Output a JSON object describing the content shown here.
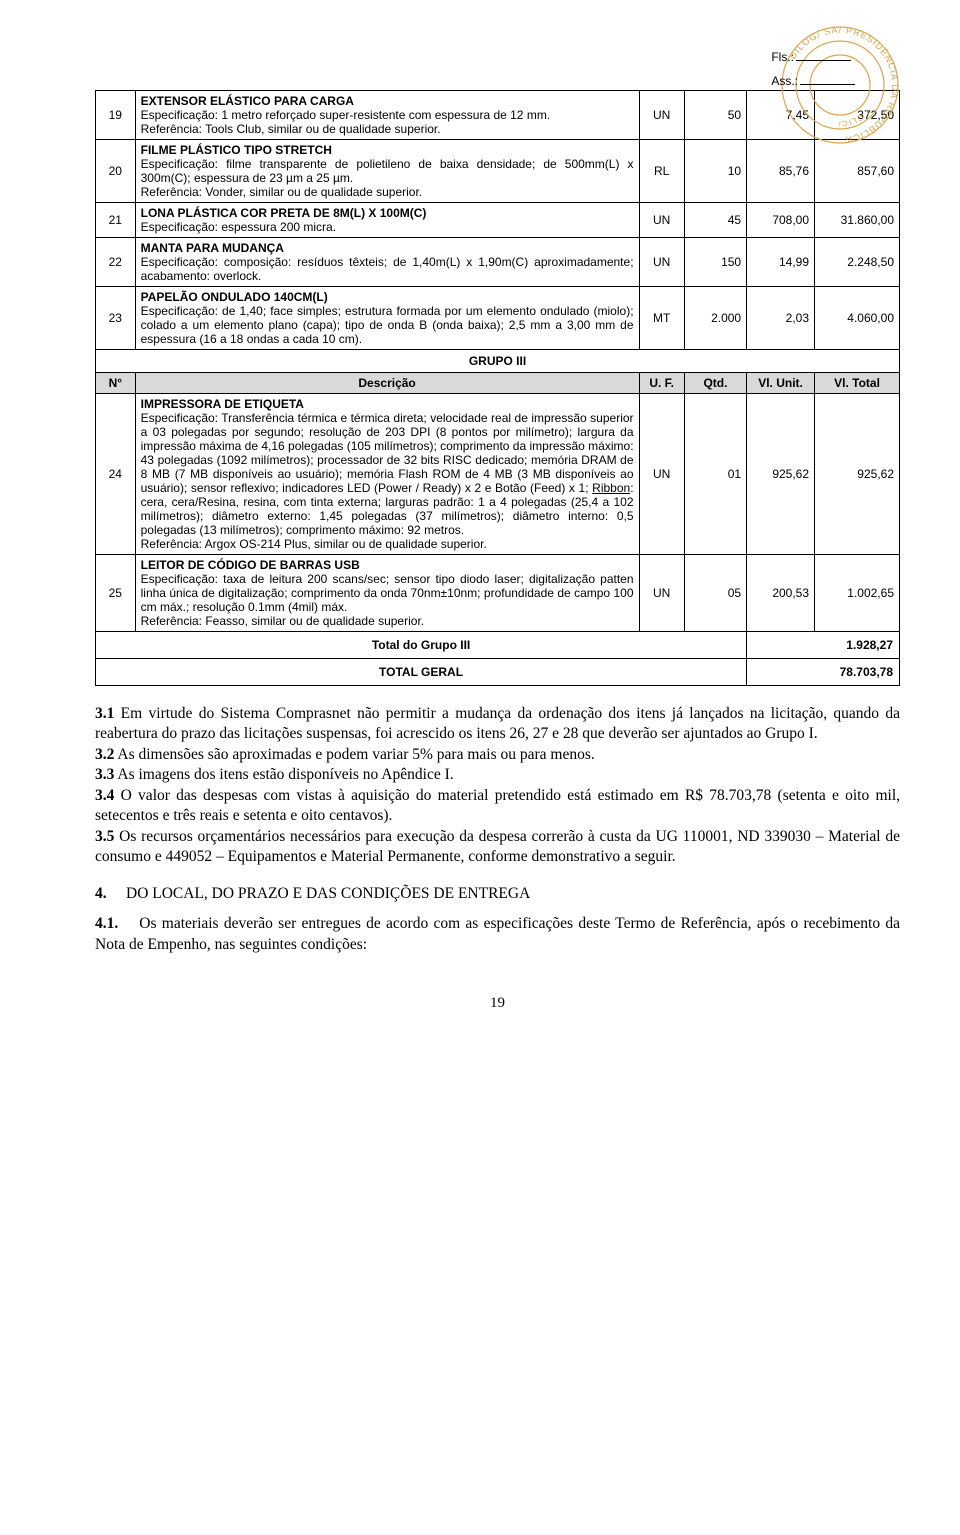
{
  "header": {
    "fls_label": "Fls.:",
    "ass_label": "Ass.:",
    "stamp_text_outer": "DILOG/ SA/ PRESIDÊNCIA DA REPÚBLICA",
    "stamp_text_inner": "/ CLIC/"
  },
  "table": {
    "rows_top": [
      {
        "n": "19",
        "title": "EXTENSOR ELÁSTICO PARA CARGA",
        "body": "Especificação: 1 metro reforçado super-resistente com espessura de 12 mm.\nReferência: Tools Club, similar ou de qualidade superior.",
        "uf": "UN",
        "qtd": "50",
        "unit": "7,45",
        "total": "372,50"
      },
      {
        "n": "20",
        "title": "FILME PLÁSTICO TIPO STRETCH",
        "body": "Especificação: filme transparente de polietileno de baixa densidade; de 500mm(L) x 300m(C); espessura de 23 µm a 25 µm.\nReferência: Vonder, similar ou de qualidade superior.",
        "uf": "RL",
        "qtd": "10",
        "unit": "85,76",
        "total": "857,60"
      },
      {
        "n": "21",
        "title": "LONA PLÁSTICA COR PRETA DE 8M(L) X 100M(C)",
        "body": "Especificação: espessura 200 micra.",
        "uf": "UN",
        "qtd": "45",
        "unit": "708,00",
        "total": "31.860,00"
      },
      {
        "n": "22",
        "title": "MANTA PARA MUDANÇA",
        "body": "Especificação: composição: resíduos têxteis; de 1,40m(L) x 1,90m(C) aproximadamente; acabamento: overlock.",
        "uf": "UN",
        "qtd": "150",
        "unit": "14,99",
        "total": "2.248,50"
      },
      {
        "n": "23",
        "title": "PAPELÃO ONDULADO 140CM(L)",
        "body": "Especificação: de 1,40; face simples; estrutura formada por um elemento ondulado (miolo); colado a um elemento plano (capa); tipo de onda B (onda baixa); 2,5 mm a 3,00 mm de espessura (16 a 18 ondas a cada 10 cm).",
        "uf": "MT",
        "qtd": "2.000",
        "unit": "2,03",
        "total": "4.060,00"
      }
    ],
    "group3_label": "GRUPO III",
    "headers": {
      "n": "N°",
      "desc": "Descrição",
      "uf": "U. F.",
      "qtd": "Qtd.",
      "unit": "Vl. Unit.",
      "total": "Vl. Total"
    },
    "rows_g3": [
      {
        "n": "24",
        "title": "IMPRESSORA DE ETIQUETA",
        "body": "Especificação: Transferência térmica e térmica direta; velocidade real de impressão superior a 03 polegadas por segundo; resolução de 203 DPI (8 pontos por milímetro); largura da impressão máxima de 4,16 polegadas (105 milímetros); comprimento da impressão máximo: 43 polegadas (1092 milímetros); processador de 32 bits RISC dedicado; memória DRAM de 8 MB (7 MB disponíveis ao usuário); memória Flash ROM de 4 MB (3 MB disponíveis ao usuário); sensor reflexivo; indicadores LED (Power / Ready) x 2 e Botão (Feed) x 1; <u>Ribbon</u>: cera, cera/Resina, resina, com tinta externa; larguras padrão: 1 a 4 polegadas (25,4 a 102 milímetros); diâmetro externo: 1,45 polegadas (37 milímetros); diâmetro interno: 0,5 polegadas (13 milímetros); comprimento máximo: 92 metros.\nReferência: Argox OS-214 Plus, similar ou de qualidade superior.",
        "uf": "UN",
        "qtd": "01",
        "unit": "925,62",
        "total": "925,62"
      },
      {
        "n": "25",
        "title": "LEITOR DE CÓDIGO DE BARRAS USB",
        "body": "Especificação: taxa de leitura 200 scans/sec; sensor tipo diodo laser; digitalização patten linha única de digitalização; comprimento da onda 70nm±10nm; profundidade de campo 100 cm máx.; resolução 0.1mm (4mil) máx.\nReferência: Feasso, similar ou de qualidade superior.",
        "uf": "UN",
        "qtd": "05",
        "unit": "200,53",
        "total": "1.002,65"
      }
    ],
    "total_g3_label": "Total do Grupo III",
    "total_g3_value": "1.928,27",
    "total_geral_label": "TOTAL GERAL",
    "total_geral_value": "78.703,78"
  },
  "body_paragraphs": [
    {
      "num": "3.1",
      "text": "Em virtude do Sistema Comprasnet não permitir a mudança da ordenação dos itens já lançados na licitação, quando da reabertura do prazo das licitações suspensas, foi acrescido os itens 26, 27 e 28 que deverão ser ajuntados ao Grupo I."
    },
    {
      "num": "3.2",
      "text": "As dimensões são aproximadas e podem variar 5% para mais ou para menos."
    },
    {
      "num": "3.3",
      "text": "As imagens dos itens estão disponíveis no Apêndice I."
    },
    {
      "num": "3.4",
      "text": "O valor das despesas com vistas à aquisição do material pretendido está estimado em R$ 78.703,78 (setenta e oito mil, setecentos e três reais e setenta e oito centavos)."
    },
    {
      "num": "3.5",
      "text": "Os recursos orçamentários necessários para execução da despesa correrão à custa da UG 110001, ND 339030 – Material de consumo e 449052 – Equipamentos e Material Permanente, conforme demonstrativo a seguir."
    }
  ],
  "section4": {
    "heading_num": "4.",
    "heading_text": "DO LOCAL, DO PRAZO E DAS CONDIÇÕES DE ENTREGA",
    "p41_num": "4.1.",
    "p41_text": "Os materiais deverão ser entregues de acordo com as especificações deste Termo de Referência, após o recebimento da Nota de Empenho, nas seguintes condições:"
  },
  "page_number": "19",
  "colors": {
    "header_bg": "#d9d9d9",
    "stamp": "#d9a64a",
    "text": "#000000",
    "background": "#ffffff"
  }
}
